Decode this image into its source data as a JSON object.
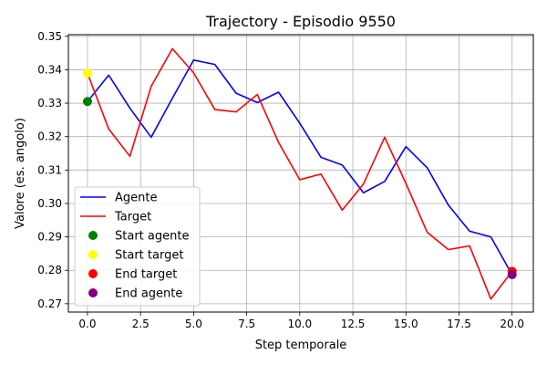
{
  "chart_data": {
    "type": "line",
    "title": "Trajectory - Episodio 9550",
    "xlabel": "Step temporale",
    "ylabel": "Valore (es. angolo)",
    "xlim": [
      -0.9,
      21.0
    ],
    "ylim": [
      0.2675,
      0.3505
    ],
    "xticks": [
      0.0,
      2.5,
      5.0,
      7.5,
      10.0,
      12.5,
      15.0,
      17.5,
      20.0
    ],
    "xtick_labels": [
      "0.0",
      "2.5",
      "5.0",
      "7.5",
      "10.0",
      "12.5",
      "15.0",
      "17.5",
      "20.0"
    ],
    "yticks": [
      0.27,
      0.28,
      0.29,
      0.3,
      0.31,
      0.32,
      0.33,
      0.34,
      0.35
    ],
    "ytick_labels": [
      "0.27",
      "0.28",
      "0.29",
      "0.30",
      "0.31",
      "0.32",
      "0.33",
      "0.34",
      "0.35"
    ],
    "grid": true,
    "legend_position": "lower-left",
    "x": [
      0,
      1,
      2,
      3,
      4,
      5,
      6,
      7,
      8,
      9,
      10,
      11,
      12,
      13,
      14,
      15,
      16,
      17,
      18,
      19,
      20
    ],
    "series": [
      {
        "name": "Agente",
        "kind": "line",
        "color": "#0000ff",
        "values": [
          0.3305,
          0.3384,
          0.3285,
          0.3198,
          0.3315,
          0.3429,
          0.3416,
          0.333,
          0.3302,
          0.3333,
          0.324,
          0.3138,
          0.3115,
          0.3032,
          0.3066,
          0.317,
          0.3107,
          0.2995,
          0.2917,
          0.29,
          0.2787
        ]
      },
      {
        "name": "Target",
        "kind": "line",
        "color": "#ff0000",
        "values": [
          0.339,
          0.3223,
          0.3141,
          0.335,
          0.3463,
          0.3391,
          0.3281,
          0.3274,
          0.3326,
          0.3183,
          0.3071,
          0.3088,
          0.298,
          0.3058,
          0.3198,
          0.306,
          0.2914,
          0.2862,
          0.2873,
          0.2714,
          0.2797
        ]
      }
    ],
    "markers": [
      {
        "name": "Start agente",
        "color": "#008000",
        "x": 0,
        "y": 0.3305
      },
      {
        "name": "Start target",
        "color": "#ffff00",
        "x": 0,
        "y": 0.339
      },
      {
        "name": "End target",
        "color": "#ff0000",
        "x": 20,
        "y": 0.2797
      },
      {
        "name": "End agente",
        "color": "#800080",
        "x": 20,
        "y": 0.2787
      }
    ]
  }
}
